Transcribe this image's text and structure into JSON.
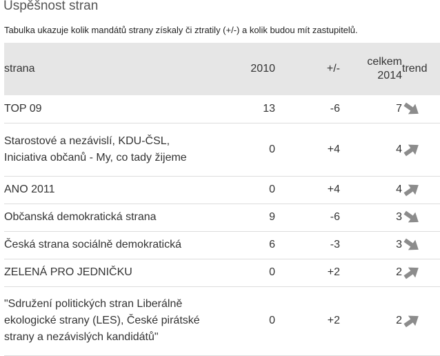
{
  "heading": "Úspěšnost stran",
  "caption": "Tabulka ukazuje kolik mandátů strany získaly či ztratily (+/-) a kolik budou mít zastupitelů.",
  "table": {
    "columns": {
      "party": "strana",
      "y2010": "2010",
      "diff": "+/-",
      "total_line1": "celkem",
      "total_line2": "2014",
      "trend": "trend"
    },
    "rows": [
      {
        "party": "TOP 09",
        "y2010": "13",
        "diff": "-6",
        "total": "7",
        "trend": "down"
      },
      {
        "party": "Starostové a nezávislí, KDU-ČSL, Iniciativa občanů - My, co tady žijeme",
        "y2010": "0",
        "diff": "+4",
        "total": "4",
        "trend": "up"
      },
      {
        "party": "ANO 2011",
        "y2010": "0",
        "diff": "+4",
        "total": "4",
        "trend": "up"
      },
      {
        "party": "Občanská demokratická strana",
        "y2010": "9",
        "diff": "-6",
        "total": "3",
        "trend": "down"
      },
      {
        "party": "Česká strana sociálně demokratická",
        "y2010": "6",
        "diff": "-3",
        "total": "3",
        "trend": "down"
      },
      {
        "party": "ZELENÁ PRO JEDNIČKU",
        "y2010": "0",
        "diff": "+2",
        "total": "2",
        "trend": "up"
      },
      {
        "party": "\"Sdružení politických stran Liberálně ekologické strany (LES), České pirátské strany a nezávislých kandidátů\"",
        "y2010": "0",
        "diff": "+2",
        "total": "2",
        "trend": "up"
      }
    ]
  },
  "colors": {
    "header_bg": "#e6e6e6",
    "arrow": "#8c8c8c",
    "text": "#333333"
  }
}
